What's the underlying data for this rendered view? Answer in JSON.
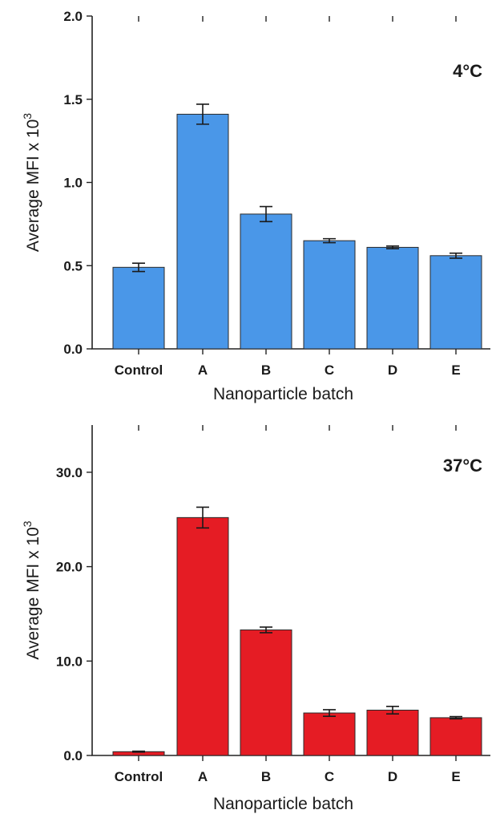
{
  "chart_data": [
    {
      "type": "bar",
      "annotation": "4°C",
      "categories": [
        "Control",
        "A",
        "B",
        "C",
        "D",
        "E"
      ],
      "values": [
        0.49,
        1.41,
        0.81,
        0.65,
        0.61,
        0.56
      ],
      "errors": [
        0.025,
        0.06,
        0.045,
        0.012,
        0.008,
        0.015
      ],
      "xlabel": "Nanoparticle batch",
      "ylabel_main": "Average MFI x 10",
      "ylabel_sup": "3",
      "ylim": [
        0,
        2.0
      ],
      "yticks": [
        0,
        0.5,
        1.0,
        1.5,
        2.0
      ],
      "ytick_labels": [
        "0.0",
        "0.5",
        "1.0",
        "1.5",
        "2.0"
      ],
      "bar_color": "#4a97e8",
      "grid": false
    },
    {
      "type": "bar",
      "annotation": "37°C",
      "categories": [
        "Control",
        "A",
        "B",
        "C",
        "D",
        "E"
      ],
      "values": [
        0.4,
        25.2,
        13.3,
        4.5,
        4.8,
        4.0
      ],
      "errors": [
        0.05,
        1.1,
        0.3,
        0.35,
        0.4,
        0.12
      ],
      "xlabel": "Nanoparticle batch",
      "ylabel_main": "Average MFI x 10",
      "ylabel_sup": "3",
      "ylim": [
        0,
        35
      ],
      "yticks": [
        0,
        10,
        20,
        30
      ],
      "ytick_labels": [
        "0.0",
        "10.0",
        "20.0",
        "30.0"
      ],
      "bar_color": "#e51c24",
      "grid": false
    }
  ]
}
